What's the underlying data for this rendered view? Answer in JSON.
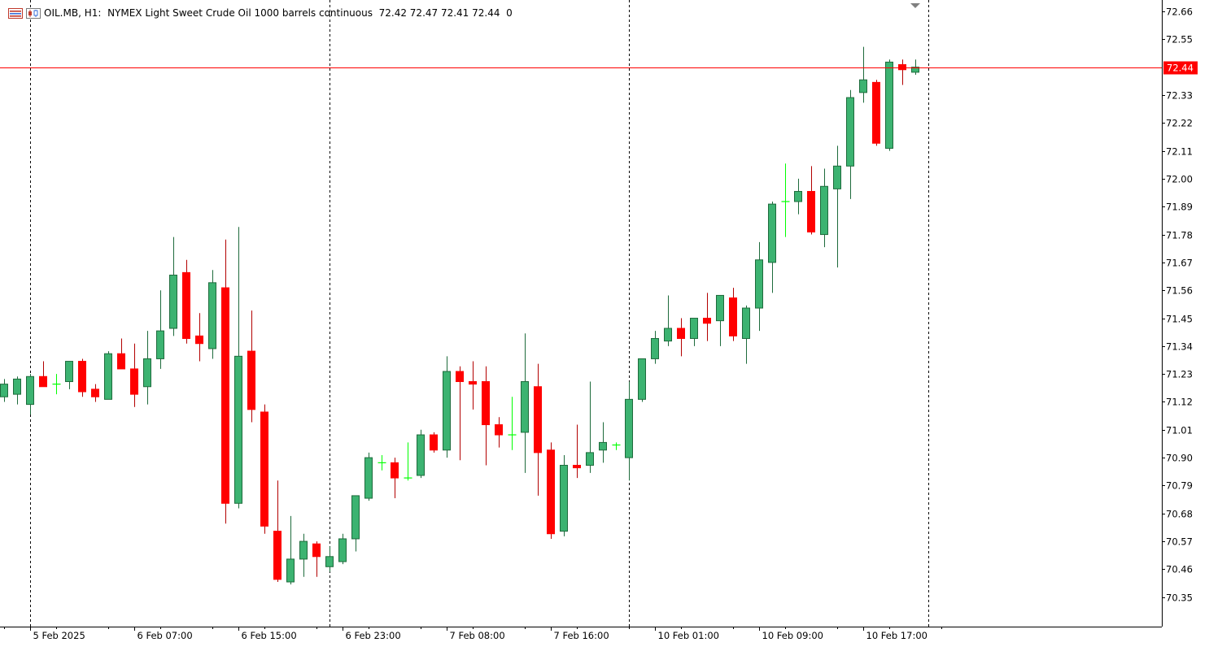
{
  "header": {
    "symbol": "OIL.MB",
    "timeframe": "H1:",
    "description": "NYMEX Light Sweet Crude Oil 1000 barrels continuous",
    "ohlc": "72.42 72.47 72.41 72.44",
    "volume": "0"
  },
  "colors": {
    "bull": "#3cb371",
    "bear": "#ff0000",
    "doji": "#00ff00",
    "price_line": "#ff0000",
    "grid": "#000000",
    "background": "#ffffff"
  },
  "chart_data": {
    "type": "candlestick",
    "timeframe": "H1",
    "current_price": 72.44,
    "ylim": [
      70.24,
      72.71
    ],
    "y_ticks": [
      72.66,
      72.55,
      72.44,
      72.33,
      72.22,
      72.11,
      72.0,
      71.89,
      71.78,
      71.67,
      71.56,
      71.45,
      71.34,
      71.23,
      71.12,
      71.01,
      70.9,
      70.79,
      70.68,
      70.57,
      70.46,
      70.35
    ],
    "x_labels": [
      {
        "label": "5 Feb 2025",
        "index": 2
      },
      {
        "label": "6 Feb 07:00",
        "index": 10
      },
      {
        "label": "6 Feb 15:00",
        "index": 18
      },
      {
        "label": "6 Feb 23:00",
        "index": 26
      },
      {
        "label": "7 Feb 08:00",
        "index": 34
      },
      {
        "label": "7 Feb 16:00",
        "index": 42
      },
      {
        "label": "10 Feb 01:00",
        "index": 50
      },
      {
        "label": "10 Feb 09:00",
        "index": 58
      },
      {
        "label": "10 Feb 17:00",
        "index": 66
      }
    ],
    "session_separators": [
      2,
      25,
      48,
      71
    ],
    "candles": [
      [
        71.14,
        71.21,
        71.12,
        71.19
      ],
      [
        71.15,
        71.22,
        71.11,
        71.21
      ],
      [
        71.11,
        71.23,
        71.07,
        71.22
      ],
      [
        71.22,
        71.28,
        71.18,
        71.18
      ],
      [
        71.19,
        71.23,
        71.15,
        71.19
      ],
      [
        71.2,
        71.28,
        71.17,
        71.28
      ],
      [
        71.28,
        71.29,
        71.14,
        71.16
      ],
      [
        71.17,
        71.19,
        71.12,
        71.14
      ],
      [
        71.13,
        71.32,
        71.13,
        71.31
      ],
      [
        71.31,
        71.37,
        71.26,
        71.25
      ],
      [
        71.25,
        71.35,
        71.1,
        71.15
      ],
      [
        71.18,
        71.4,
        71.11,
        71.29
      ],
      [
        71.29,
        71.56,
        71.25,
        71.4
      ],
      [
        71.41,
        71.77,
        71.38,
        71.62
      ],
      [
        71.63,
        71.68,
        71.35,
        71.37
      ],
      [
        71.38,
        71.47,
        71.28,
        71.35
      ],
      [
        71.33,
        71.64,
        71.29,
        71.59
      ],
      [
        71.57,
        71.76,
        70.64,
        70.72
      ],
      [
        70.72,
        71.81,
        70.7,
        71.3
      ],
      [
        71.32,
        71.48,
        71.04,
        71.09
      ],
      [
        71.08,
        71.11,
        70.6,
        70.63
      ],
      [
        70.61,
        70.81,
        70.41,
        70.42
      ],
      [
        70.41,
        70.67,
        70.4,
        70.5
      ],
      [
        70.5,
        70.6,
        70.43,
        70.57
      ],
      [
        70.56,
        70.57,
        70.43,
        70.51
      ],
      [
        70.47,
        70.55,
        70.45,
        70.51
      ],
      [
        70.49,
        70.6,
        70.48,
        70.58
      ],
      [
        70.58,
        70.75,
        70.53,
        70.75
      ],
      [
        70.74,
        70.92,
        70.73,
        70.9
      ],
      [
        70.88,
        70.91,
        70.85,
        70.88
      ],
      [
        70.88,
        70.9,
        70.74,
        70.82
      ],
      [
        70.82,
        70.96,
        70.81,
        70.82
      ],
      [
        70.83,
        71.01,
        70.82,
        70.99
      ],
      [
        70.99,
        71.0,
        70.92,
        70.93
      ],
      [
        70.93,
        71.3,
        70.9,
        71.24
      ],
      [
        71.24,
        71.26,
        70.89,
        71.2
      ],
      [
        71.2,
        71.28,
        71.09,
        71.19
      ],
      [
        71.2,
        71.26,
        70.87,
        71.03
      ],
      [
        71.03,
        71.06,
        70.94,
        70.99
      ],
      [
        70.99,
        71.14,
        70.93,
        70.99
      ],
      [
        71.0,
        71.39,
        70.84,
        71.2
      ],
      [
        71.18,
        71.27,
        70.75,
        70.92
      ],
      [
        70.93,
        70.96,
        70.58,
        70.6
      ],
      [
        70.61,
        70.91,
        70.59,
        70.87
      ],
      [
        70.87,
        71.03,
        70.82,
        70.86
      ],
      [
        70.87,
        71.2,
        70.84,
        70.92
      ],
      [
        70.93,
        71.04,
        70.88,
        70.96
      ],
      [
        70.95,
        70.96,
        70.93,
        70.95
      ],
      [
        70.9,
        71.2,
        70.81,
        71.13
      ],
      [
        71.13,
        71.29,
        71.12,
        71.29
      ],
      [
        71.29,
        71.4,
        71.27,
        71.37
      ],
      [
        71.36,
        71.54,
        71.34,
        71.41
      ],
      [
        71.41,
        71.45,
        71.3,
        71.37
      ],
      [
        71.37,
        71.45,
        71.34,
        71.45
      ],
      [
        71.45,
        71.55,
        71.36,
        71.43
      ],
      [
        71.44,
        71.54,
        71.34,
        71.54
      ],
      [
        71.53,
        71.57,
        71.36,
        71.38
      ],
      [
        71.37,
        71.5,
        71.27,
        71.49
      ],
      [
        71.49,
        71.75,
        71.4,
        71.68
      ],
      [
        71.67,
        71.91,
        71.55,
        71.9
      ],
      [
        71.91,
        72.06,
        71.77,
        71.91
      ],
      [
        71.91,
        72.0,
        71.86,
        71.95
      ],
      [
        71.95,
        72.05,
        71.78,
        71.79
      ],
      [
        71.78,
        72.04,
        71.73,
        71.97
      ],
      [
        71.96,
        72.13,
        71.65,
        72.05
      ],
      [
        72.05,
        72.35,
        71.92,
        72.32
      ],
      [
        72.34,
        72.52,
        72.3,
        72.39
      ],
      [
        72.38,
        72.39,
        72.13,
        72.14
      ],
      [
        72.12,
        72.47,
        72.11,
        72.46
      ],
      [
        72.45,
        72.47,
        72.37,
        72.43
      ],
      [
        72.42,
        72.47,
        72.41,
        72.44
      ]
    ]
  }
}
